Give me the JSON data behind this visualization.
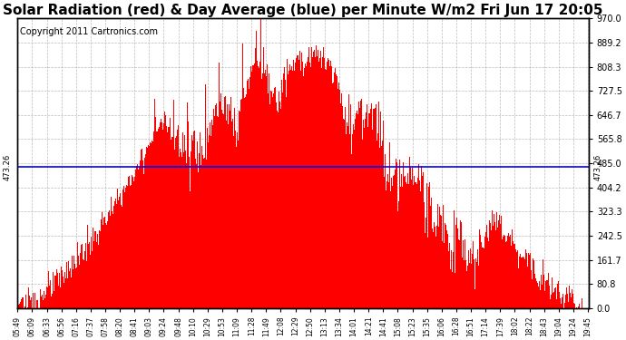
{
  "title": "Solar Radiation (red) & Day Average (blue) per Minute W/m2 Fri Jun 17 20:05",
  "copyright": "Copyright 2011 Cartronics.com",
  "y_min": 0.0,
  "y_max": 970.0,
  "y_ticks": [
    0.0,
    80.8,
    161.7,
    242.5,
    323.3,
    404.2,
    485.0,
    565.8,
    646.7,
    727.5,
    808.3,
    889.2,
    970.0
  ],
  "day_average": 473.26,
  "bar_color": "#FF0000",
  "avg_line_color": "#0000FF",
  "background_color": "#FFFFFF",
  "grid_color": "#AAAAAA",
  "x_tick_labels": [
    "05:49",
    "06:09",
    "06:33",
    "06:56",
    "07:16",
    "07:37",
    "07:58",
    "08:20",
    "08:41",
    "09:03",
    "09:24",
    "09:48",
    "10:10",
    "10:29",
    "10:53",
    "11:09",
    "11:28",
    "11:49",
    "12:08",
    "12:29",
    "12:50",
    "13:13",
    "13:34",
    "14:01",
    "14:21",
    "14:41",
    "15:08",
    "15:23",
    "15:35",
    "16:06",
    "16:28",
    "16:51",
    "17:14",
    "17:39",
    "18:02",
    "18:22",
    "18:43",
    "19:04",
    "19:24",
    "19:45"
  ],
  "title_fontsize": 11,
  "copyright_fontsize": 7,
  "tick_fontsize": 7,
  "xtick_fontsize": 5.5
}
